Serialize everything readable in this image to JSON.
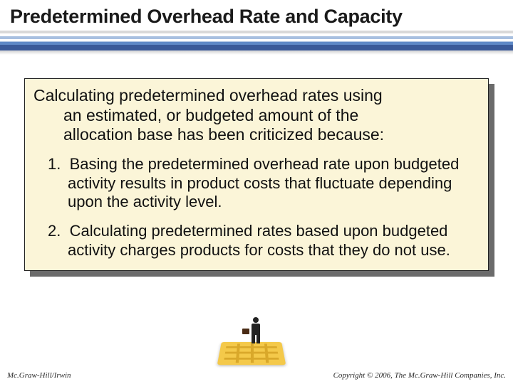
{
  "title": "Predetermined Overhead Rate and Capacity",
  "panel": {
    "intro_line1": "Calculating predetermined overhead rates using",
    "intro_line2": "an estimated, or budgeted amount of the",
    "intro_line3": "allocation base has been criticized because:",
    "points": [
      {
        "num": "1.",
        "text": "Basing the predetermined overhead rate upon budgeted activity results in product costs that fluctuate depending upon the activity level."
      },
      {
        "num": "2.",
        "text": "Calculating predetermined rates based upon budgeted activity charges products for costs that they do not use."
      }
    ]
  },
  "footer": {
    "left": "Mc.Graw-Hill/Irwin",
    "right": "Copyright © 2006, The Mc.Graw-Hill Companies, Inc."
  },
  "colors": {
    "panel_bg": "#fbf5d8",
    "panel_shadow": "#6b6b6b",
    "maze": "#f4c94a",
    "stripe_dark": "#3a5a99"
  }
}
